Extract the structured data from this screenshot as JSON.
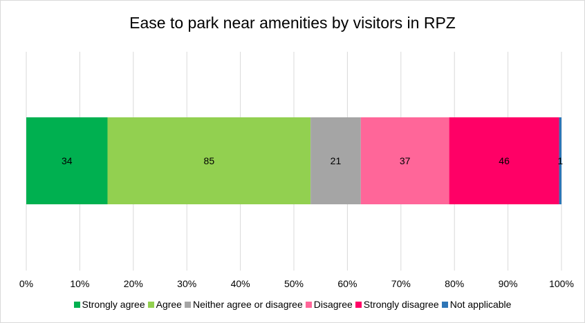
{
  "chart_data": {
    "type": "bar",
    "orientation": "horizontal-stacked-100",
    "title": "Ease to park near amenities by visitors in RPZ",
    "series": [
      {
        "name": "Strongly agree",
        "value": 34,
        "color": "#00b050"
      },
      {
        "name": "Agree",
        "value": 85,
        "color": "#92d050"
      },
      {
        "name": "Neither agree or disagree",
        "value": 21,
        "color": "#a5a5a5"
      },
      {
        "name": "Disagree",
        "value": 37,
        "color": "#ff6699"
      },
      {
        "name": "Strongly disagree",
        "value": 46,
        "color": "#ff0066"
      },
      {
        "name": "Not applicable",
        "value": 1,
        "color": "#2e75b6"
      }
    ],
    "xticks": [
      "0%",
      "10%",
      "20%",
      "30%",
      "40%",
      "50%",
      "60%",
      "70%",
      "80%",
      "90%",
      "100%"
    ],
    "xlim": [
      0,
      100
    ],
    "grid": true,
    "legend": "bottom"
  }
}
